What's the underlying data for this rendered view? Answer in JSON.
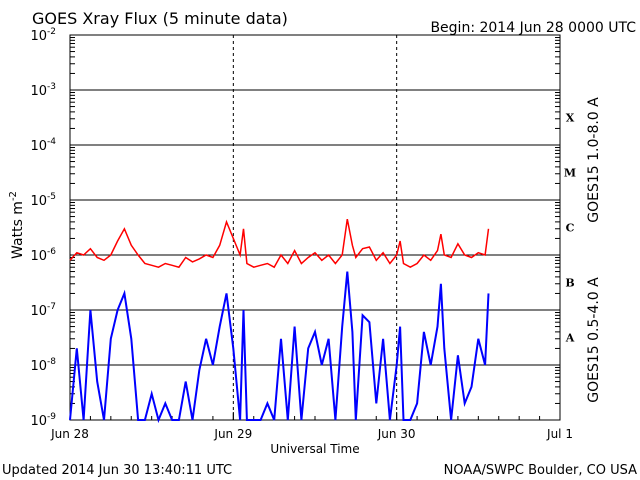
{
  "header": {
    "title": "GOES Xray Flux (5 minute data)",
    "begin": "Begin:  2014 Jun 28 0000 UTC"
  },
  "footer": {
    "updated": "Updated 2014 Jun 30 13:40:11 UTC",
    "credit": "NOAA/SWPC Boulder, CO USA"
  },
  "colors": {
    "long_channel": "#ff0000",
    "short_channel": "#0000ff",
    "grid": "#000000"
  },
  "chart_data": {
    "type": "line",
    "title": "GOES Xray Flux (5 minute data)",
    "xlabel": "Universal Time",
    "ylabel": "Watts m",
    "ylabel_exponent": "-2",
    "y_scale": "log",
    "ylim": [
      1e-09,
      0.01
    ],
    "xlim": [
      "2014 Jun 28",
      "2014 Jul 1"
    ],
    "x_ticks": [
      "Jun 28",
      "Jun 29",
      "Jun 30",
      "Jul 1"
    ],
    "y_ticks": [
      {
        "base": "10",
        "exp": "-9",
        "value": 1e-09
      },
      {
        "base": "10",
        "exp": "-8",
        "value": 1e-08
      },
      {
        "base": "10",
        "exp": "-7",
        "value": 1e-07
      },
      {
        "base": "10",
        "exp": "-6",
        "value": 1e-06
      },
      {
        "base": "10",
        "exp": "-5",
        "value": 1e-05
      },
      {
        "base": "10",
        "exp": "-4",
        "value": 0.0001
      },
      {
        "base": "10",
        "exp": "-3",
        "value": 0.001
      },
      {
        "base": "10",
        "exp": "-2",
        "value": 0.01
      }
    ],
    "flare_classes": [
      {
        "label": "X",
        "value": 0.000316
      },
      {
        "label": "M",
        "value": 3.16e-05
      },
      {
        "label": "C",
        "value": 3.16e-06
      },
      {
        "label": "B",
        "value": 3.16e-07
      },
      {
        "label": "A",
        "value": 3.16e-08
      }
    ],
    "grid": true,
    "series": [
      {
        "name": "GOES15 1.0-8.0 A",
        "color": "#ff0000",
        "points": [
          [
            "2014-06-28 00:00",
            8e-07
          ],
          [
            "2014-06-28 01:00",
            1.1e-06
          ],
          [
            "2014-06-28 02:00",
            1e-06
          ],
          [
            "2014-06-28 03:00",
            1.3e-06
          ],
          [
            "2014-06-28 04:00",
            9e-07
          ],
          [
            "2014-06-28 05:00",
            8e-07
          ],
          [
            "2014-06-28 06:00",
            1e-06
          ],
          [
            "2014-06-28 07:00",
            1.8e-06
          ],
          [
            "2014-06-28 08:00",
            3e-06
          ],
          [
            "2014-06-28 09:00",
            1.5e-06
          ],
          [
            "2014-06-28 10:00",
            1e-06
          ],
          [
            "2014-06-28 11:00",
            7e-07
          ],
          [
            "2014-06-28 12:00",
            6.5e-07
          ],
          [
            "2014-06-28 13:00",
            6e-07
          ],
          [
            "2014-06-28 14:00",
            7e-07
          ],
          [
            "2014-06-28 15:00",
            6.5e-07
          ],
          [
            "2014-06-28 16:00",
            6e-07
          ],
          [
            "2014-06-28 17:00",
            9e-07
          ],
          [
            "2014-06-28 18:00",
            7.5e-07
          ],
          [
            "2014-06-28 19:00",
            8.5e-07
          ],
          [
            "2014-06-28 20:00",
            1e-06
          ],
          [
            "2014-06-28 21:00",
            9e-07
          ],
          [
            "2014-06-28 22:00",
            1.5e-06
          ],
          [
            "2014-06-28 23:00",
            4e-06
          ],
          [
            "2014-06-29 00:00",
            2e-06
          ],
          [
            "2014-06-29 01:00",
            1e-06
          ],
          [
            "2014-06-29 01:30",
            3e-06
          ],
          [
            "2014-06-29 02:00",
            7e-07
          ],
          [
            "2014-06-29 03:00",
            6e-07
          ],
          [
            "2014-06-29 04:00",
            6.5e-07
          ],
          [
            "2014-06-29 05:00",
            7e-07
          ],
          [
            "2014-06-29 06:00",
            6e-07
          ],
          [
            "2014-06-29 07:00",
            1e-06
          ],
          [
            "2014-06-29 08:00",
            7e-07
          ],
          [
            "2014-06-29 09:00",
            1.2e-06
          ],
          [
            "2014-06-29 10:00",
            7e-07
          ],
          [
            "2014-06-29 11:00",
            9e-07
          ],
          [
            "2014-06-29 12:00",
            1.1e-06
          ],
          [
            "2014-06-29 13:00",
            8e-07
          ],
          [
            "2014-06-29 14:00",
            1e-06
          ],
          [
            "2014-06-29 15:00",
            7e-07
          ],
          [
            "2014-06-29 16:00",
            1e-06
          ],
          [
            "2014-06-29 16:45",
            4.5e-06
          ],
          [
            "2014-06-29 17:30",
            1.5e-06
          ],
          [
            "2014-06-29 18:00",
            9e-07
          ],
          [
            "2014-06-29 19:00",
            1.3e-06
          ],
          [
            "2014-06-29 20:00",
            1.4e-06
          ],
          [
            "2014-06-29 21:00",
            8e-07
          ],
          [
            "2014-06-29 22:00",
            1.1e-06
          ],
          [
            "2014-06-29 23:00",
            7e-07
          ],
          [
            "2014-06-30 00:00",
            1e-06
          ],
          [
            "2014-06-30 00:30",
            1.8e-06
          ],
          [
            "2014-06-30 01:00",
            7e-07
          ],
          [
            "2014-06-30 02:00",
            6e-07
          ],
          [
            "2014-06-30 03:00",
            7e-07
          ],
          [
            "2014-06-30 04:00",
            1e-06
          ],
          [
            "2014-06-30 05:00",
            8e-07
          ],
          [
            "2014-06-30 06:00",
            1.2e-06
          ],
          [
            "2014-06-30 06:30",
            2.4e-06
          ],
          [
            "2014-06-30 07:00",
            1e-06
          ],
          [
            "2014-06-30 08:00",
            9e-07
          ],
          [
            "2014-06-30 09:00",
            1.6e-06
          ],
          [
            "2014-06-30 10:00",
            1e-06
          ],
          [
            "2014-06-30 11:00",
            9e-07
          ],
          [
            "2014-06-30 12:00",
            1.1e-06
          ],
          [
            "2014-06-30 13:00",
            1e-06
          ],
          [
            "2014-06-30 13:30",
            3e-06
          ]
        ]
      },
      {
        "name": "GOES15 0.5-4.0 A",
        "color": "#0000ff",
        "points": [
          [
            "2014-06-28 00:00",
            1e-09
          ],
          [
            "2014-06-28 01:00",
            2e-08
          ],
          [
            "2014-06-28 02:00",
            1e-09
          ],
          [
            "2014-06-28 03:00",
            1e-07
          ],
          [
            "2014-06-28 04:00",
            5e-09
          ],
          [
            "2014-06-28 05:00",
            1e-09
          ],
          [
            "2014-06-28 06:00",
            3e-08
          ],
          [
            "2014-06-28 07:00",
            1e-07
          ],
          [
            "2014-06-28 08:00",
            2e-07
          ],
          [
            "2014-06-28 09:00",
            3e-08
          ],
          [
            "2014-06-28 10:00",
            1e-09
          ],
          [
            "2014-06-28 11:00",
            1e-09
          ],
          [
            "2014-06-28 12:00",
            3e-09
          ],
          [
            "2014-06-28 13:00",
            1e-09
          ],
          [
            "2014-06-28 14:00",
            2e-09
          ],
          [
            "2014-06-28 15:00",
            1e-09
          ],
          [
            "2014-06-28 16:00",
            1e-09
          ],
          [
            "2014-06-28 17:00",
            5e-09
          ],
          [
            "2014-06-28 18:00",
            1e-09
          ],
          [
            "2014-06-28 19:00",
            8e-09
          ],
          [
            "2014-06-28 20:00",
            3e-08
          ],
          [
            "2014-06-28 21:00",
            1e-08
          ],
          [
            "2014-06-28 22:00",
            5e-08
          ],
          [
            "2014-06-28 23:00",
            2e-07
          ],
          [
            "2014-06-29 00:00",
            2e-08
          ],
          [
            "2014-06-29 01:00",
            1e-09
          ],
          [
            "2014-06-29 01:30",
            1e-07
          ],
          [
            "2014-06-29 02:00",
            1e-09
          ],
          [
            "2014-06-29 03:00",
            1e-09
          ],
          [
            "2014-06-29 04:00",
            1e-09
          ],
          [
            "2014-06-29 05:00",
            2e-09
          ],
          [
            "2014-06-29 06:00",
            1e-09
          ],
          [
            "2014-06-29 07:00",
            3e-08
          ],
          [
            "2014-06-29 08:00",
            1e-09
          ],
          [
            "2014-06-29 09:00",
            5e-08
          ],
          [
            "2014-06-29 10:00",
            1e-09
          ],
          [
            "2014-06-29 11:00",
            2e-08
          ],
          [
            "2014-06-29 12:00",
            4e-08
          ],
          [
            "2014-06-29 13:00",
            1e-08
          ],
          [
            "2014-06-29 14:00",
            3e-08
          ],
          [
            "2014-06-29 15:00",
            1e-09
          ],
          [
            "2014-06-29 16:00",
            5e-08
          ],
          [
            "2014-06-29 16:45",
            5e-07
          ],
          [
            "2014-06-29 17:30",
            4e-08
          ],
          [
            "2014-06-29 18:00",
            1e-09
          ],
          [
            "2014-06-29 19:00",
            8e-08
          ],
          [
            "2014-06-29 20:00",
            6e-08
          ],
          [
            "2014-06-29 21:00",
            2e-09
          ],
          [
            "2014-06-29 22:00",
            3e-08
          ],
          [
            "2014-06-29 23:00",
            1e-09
          ],
          [
            "2014-06-30 00:00",
            1e-08
          ],
          [
            "2014-06-30 00:30",
            5e-08
          ],
          [
            "2014-06-30 01:00",
            1e-09
          ],
          [
            "2014-06-30 02:00",
            1e-09
          ],
          [
            "2014-06-30 03:00",
            2e-09
          ],
          [
            "2014-06-30 04:00",
            4e-08
          ],
          [
            "2014-06-30 05:00",
            1e-08
          ],
          [
            "2014-06-30 06:00",
            5e-08
          ],
          [
            "2014-06-30 06:30",
            3e-07
          ],
          [
            "2014-06-30 07:00",
            2e-08
          ],
          [
            "2014-06-30 08:00",
            1e-09
          ],
          [
            "2014-06-30 09:00",
            1.5e-08
          ],
          [
            "2014-06-30 10:00",
            2e-09
          ],
          [
            "2014-06-30 11:00",
            4e-09
          ],
          [
            "2014-06-30 12:00",
            3e-08
          ],
          [
            "2014-06-30 13:00",
            1e-08
          ],
          [
            "2014-06-30 13:30",
            2e-07
          ]
        ]
      }
    ]
  }
}
